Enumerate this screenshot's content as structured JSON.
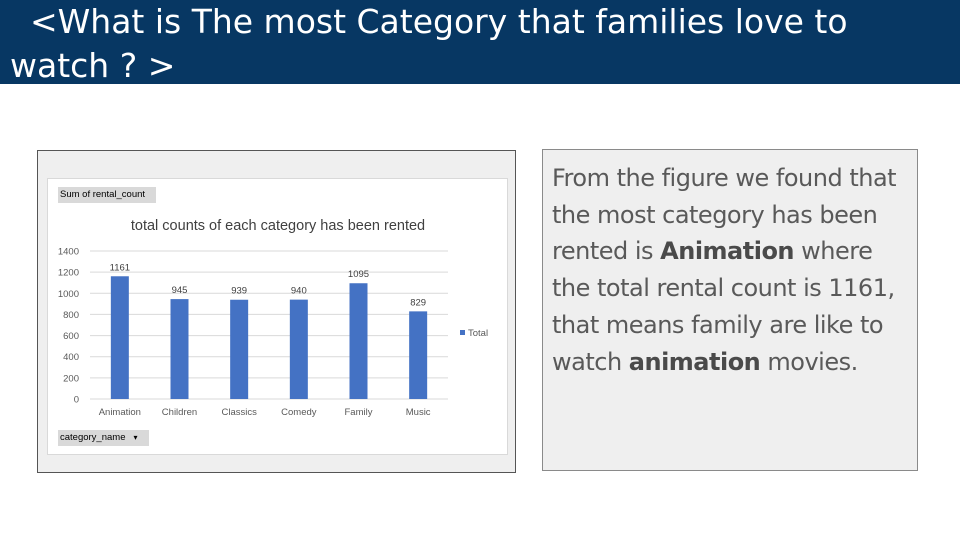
{
  "slide": {
    "title": "  <What is The most Category that families love to watch ? >"
  },
  "pivot": {
    "value_field": "Sum of rental_count",
    "axis_field": "category_name",
    "axis_dropdown_glyph": "▾"
  },
  "chart_data": {
    "type": "bar",
    "title": "total counts of each category has been rented",
    "categories": [
      "Animation",
      "Children",
      "Classics",
      "Comedy",
      "Family",
      "Music"
    ],
    "series": [
      {
        "name": "Total",
        "values": [
          1161,
          945,
          939,
          940,
          1095,
          829
        ]
      }
    ],
    "data_labels": [
      "1161",
      "945",
      "939",
      "940",
      "1095",
      "829"
    ],
    "yticks": [
      0,
      200,
      400,
      600,
      800,
      1000,
      1200,
      1400
    ],
    "ylim": [
      0,
      1400
    ],
    "xlabel": "",
    "ylabel": "",
    "grid": true,
    "legend": "right",
    "colors": {
      "bar": "#4472c4",
      "grid": "#d9d9d9",
      "text": "#595959"
    }
  },
  "findings": {
    "part1": "From the figure we found that the most category has been rented is ",
    "bold1": "Animation",
    "part2": " where the total rental count is 1161, that means family are like to watch ",
    "bold2": "animation",
    "part3": " movies."
  }
}
